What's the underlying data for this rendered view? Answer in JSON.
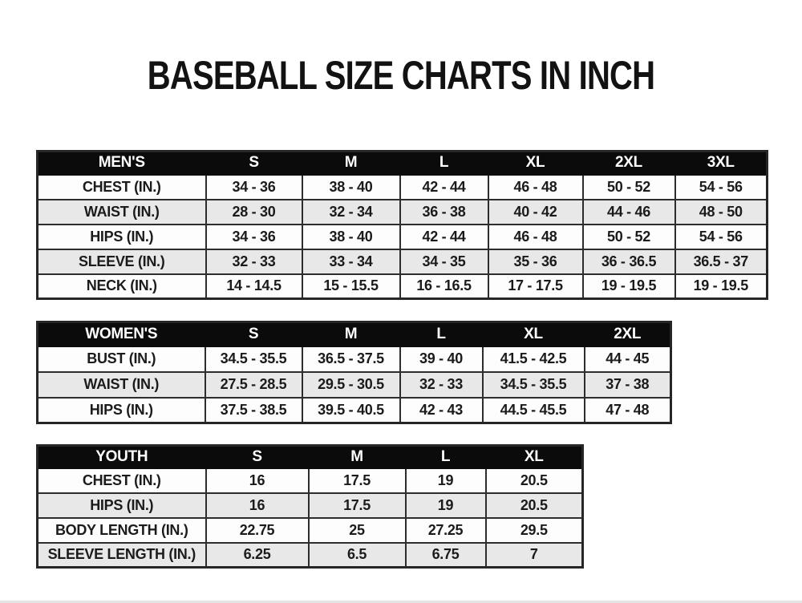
{
  "page": {
    "title": "BASEBALL SIZE CHARTS IN INCH"
  },
  "colors": {
    "header_bg": "#0b0b0b",
    "header_text": "#ffffff",
    "row_white": "#fdfdfd",
    "row_alt_gray": "#e8e8e8",
    "border": "#2d2d2d",
    "text": "#1b1b1b"
  },
  "tables": [
    {
      "id": "mens",
      "header": [
        "MEN'S",
        "S",
        "M",
        "L",
        "XL",
        "2XL",
        "3XL"
      ],
      "rows": [
        [
          "CHEST (IN.)",
          "34 - 36",
          "38 - 40",
          "42 - 44",
          "46 - 48",
          "50 - 52",
          "54 - 56"
        ],
        [
          "WAIST (IN.)",
          "28 - 30",
          "32 - 34",
          "36 - 38",
          "40 - 42",
          "44 - 46",
          "48 - 50"
        ],
        [
          "HIPS (IN.)",
          "34 - 36",
          "38 - 40",
          "42 - 44",
          "46 - 48",
          "50 - 52",
          "54 - 56"
        ],
        [
          "SLEEVE (IN.)",
          "32 - 33",
          "33 - 34",
          "34 - 35",
          "35 - 36",
          "36 - 36.5",
          "36.5 - 37"
        ],
        [
          "NECK (IN.)",
          "14 - 14.5",
          "15 - 15.5",
          "16 - 16.5",
          "17 - 17.5",
          "19 - 19.5",
          "19 - 19.5"
        ]
      ]
    },
    {
      "id": "womens",
      "header": [
        "WOMEN'S",
        "S",
        "M",
        "L",
        "XL",
        "2XL"
      ],
      "rows": [
        [
          "BUST (IN.)",
          "34.5 - 35.5",
          "36.5 - 37.5",
          "39 - 40",
          "41.5 - 42.5",
          "44 - 45"
        ],
        [
          "WAIST (IN.)",
          "27.5 - 28.5",
          "29.5 - 30.5",
          "32 - 33",
          "34.5 - 35.5",
          "37 - 38"
        ],
        [
          "HIPS (IN.)",
          "37.5 - 38.5",
          "39.5 - 40.5",
          "42 - 43",
          "44.5 - 45.5",
          "47 - 48"
        ]
      ]
    },
    {
      "id": "youth",
      "header": [
        "YOUTH",
        "S",
        "M",
        "L",
        "XL"
      ],
      "rows": [
        [
          "CHEST (IN.)",
          "16",
          "17.5",
          "19",
          "20.5"
        ],
        [
          "HIPS (IN.)",
          "16",
          "17.5",
          "19",
          "20.5"
        ],
        [
          "BODY LENGTH (IN.)",
          "22.75",
          "25",
          "27.25",
          "29.5"
        ],
        [
          "SLEEVE LENGTH (IN.)",
          "6.25",
          "6.5",
          "6.75",
          "7"
        ]
      ]
    }
  ]
}
